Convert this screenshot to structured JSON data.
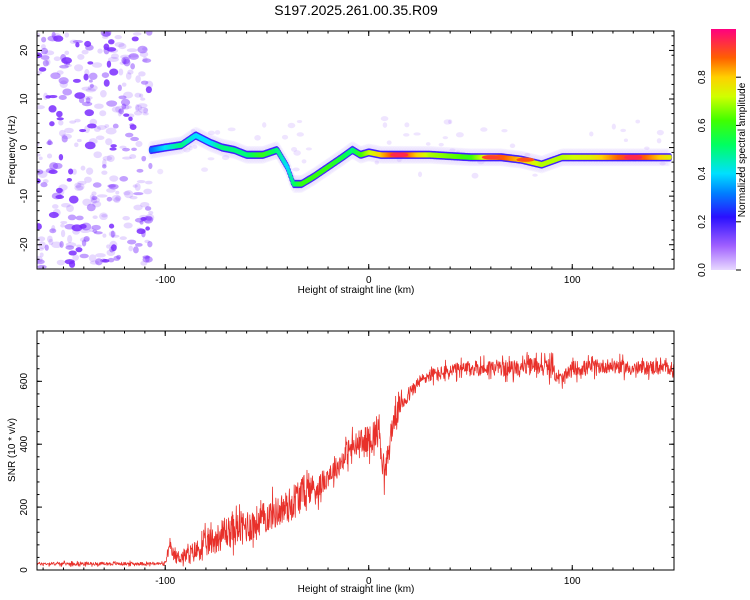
{
  "title": "S197.2025.261.00.35.R09",
  "colors": {
    "snr_line": "#e8302a",
    "frame": "#000000",
    "background": "#ffffff",
    "noise": "#7a2cff"
  },
  "chart_data": [
    {
      "type": "heatmap",
      "title": "S197.2025.261.00.35.R09",
      "xlabel": "Height of straight line (km)",
      "ylabel": "Frequency (Hz)",
      "xlim": [
        -163,
        150
      ],
      "ylim": [
        -25,
        24
      ],
      "xticks": [
        -100,
        0,
        100
      ],
      "yticks": [
        -20,
        -10,
        0,
        10,
        20
      ],
      "colorbar": {
        "label": "Normalized spectral amplitude",
        "range": [
          0,
          1
        ],
        "ticks": [
          "0.0",
          "0.2",
          "0.4",
          "0.6",
          "0.8"
        ]
      },
      "noise_region_x": [
        -163,
        -107
      ],
      "ridge": {
        "x": [
          -107,
          -100,
          -92,
          -85,
          -78,
          -72,
          -66,
          -60,
          -52,
          -45,
          -40,
          -37,
          -33,
          -27,
          -20,
          -13,
          -8,
          -4,
          0,
          6,
          15,
          30,
          50,
          65,
          75,
          85,
          95,
          110,
          130,
          148
        ],
        "y": [
          -0.5,
          0,
          0.5,
          2.5,
          1,
          0,
          -0.5,
          -1.5,
          -1.5,
          -0.5,
          -4,
          -7.5,
          -7.5,
          -6,
          -4,
          -2,
          -0.5,
          -1.5,
          -1,
          -1.5,
          -1.5,
          -1.5,
          -2,
          -2,
          -2.5,
          -3.5,
          -2,
          -2,
          -2,
          -2
        ],
        "amplitude": [
          0.3,
          0.4,
          0.5,
          0.4,
          0.4,
          0.5,
          0.5,
          0.5,
          0.6,
          0.5,
          0.4,
          0.5,
          0.6,
          0.6,
          0.6,
          0.55,
          0.5,
          0.6,
          0.7,
          0.8,
          0.95,
          0.7,
          0.6,
          0.9,
          0.8,
          0.7,
          0.7,
          0.75,
          0.95,
          0.75
        ]
      },
      "hot_spots": [
        {
          "x": 15,
          "y": -1.5,
          "amplitude": 0.95
        },
        {
          "x": 60,
          "y": -2,
          "amplitude": 0.92
        },
        {
          "x": 77,
          "y": -2.5,
          "amplitude": 0.9
        },
        {
          "x": 130,
          "y": -2,
          "amplitude": 0.95
        }
      ]
    },
    {
      "type": "line",
      "xlabel": "Height of straight line (km)",
      "ylabel": "SNR (10 * v/v)",
      "xlim": [
        -163,
        150
      ],
      "ylim": [
        0,
        760
      ],
      "xticks": [
        -100,
        0,
        100
      ],
      "yticks": [
        0,
        200,
        400,
        600
      ],
      "series": [
        {
          "name": "SNR",
          "x": [
            -163,
            -130,
            -100,
            -98,
            -95,
            -90,
            -85,
            -80,
            -75,
            -70,
            -65,
            -60,
            -55,
            -50,
            -45,
            -40,
            -35,
            -30,
            -25,
            -20,
            -15,
            -10,
            -5,
            0,
            5,
            8,
            12,
            15,
            20,
            25,
            30,
            35,
            40,
            50,
            60,
            70,
            80,
            85,
            90,
            95,
            100,
            110,
            120,
            130,
            140,
            150
          ],
          "mean": [
            20,
            20,
            20,
            70,
            40,
            45,
            60,
            80,
            100,
            120,
            130,
            140,
            150,
            170,
            185,
            200,
            230,
            260,
            260,
            300,
            330,
            380,
            400,
            410,
            450,
            300,
            470,
            520,
            560,
            600,
            620,
            625,
            630,
            640,
            645,
            640,
            650,
            650,
            640,
            600,
            640,
            645,
            650,
            640,
            645,
            640
          ],
          "spread": [
            10,
            10,
            10,
            40,
            40,
            50,
            70,
            80,
            90,
            100,
            100,
            110,
            110,
            100,
            100,
            110,
            120,
            100,
            80,
            70,
            70,
            80,
            90,
            100,
            110,
            90,
            80,
            60,
            50,
            40,
            40,
            45,
            50,
            50,
            50,
            50,
            50,
            60,
            60,
            50,
            50,
            45,
            45,
            45,
            45,
            40
          ]
        }
      ]
    }
  ]
}
